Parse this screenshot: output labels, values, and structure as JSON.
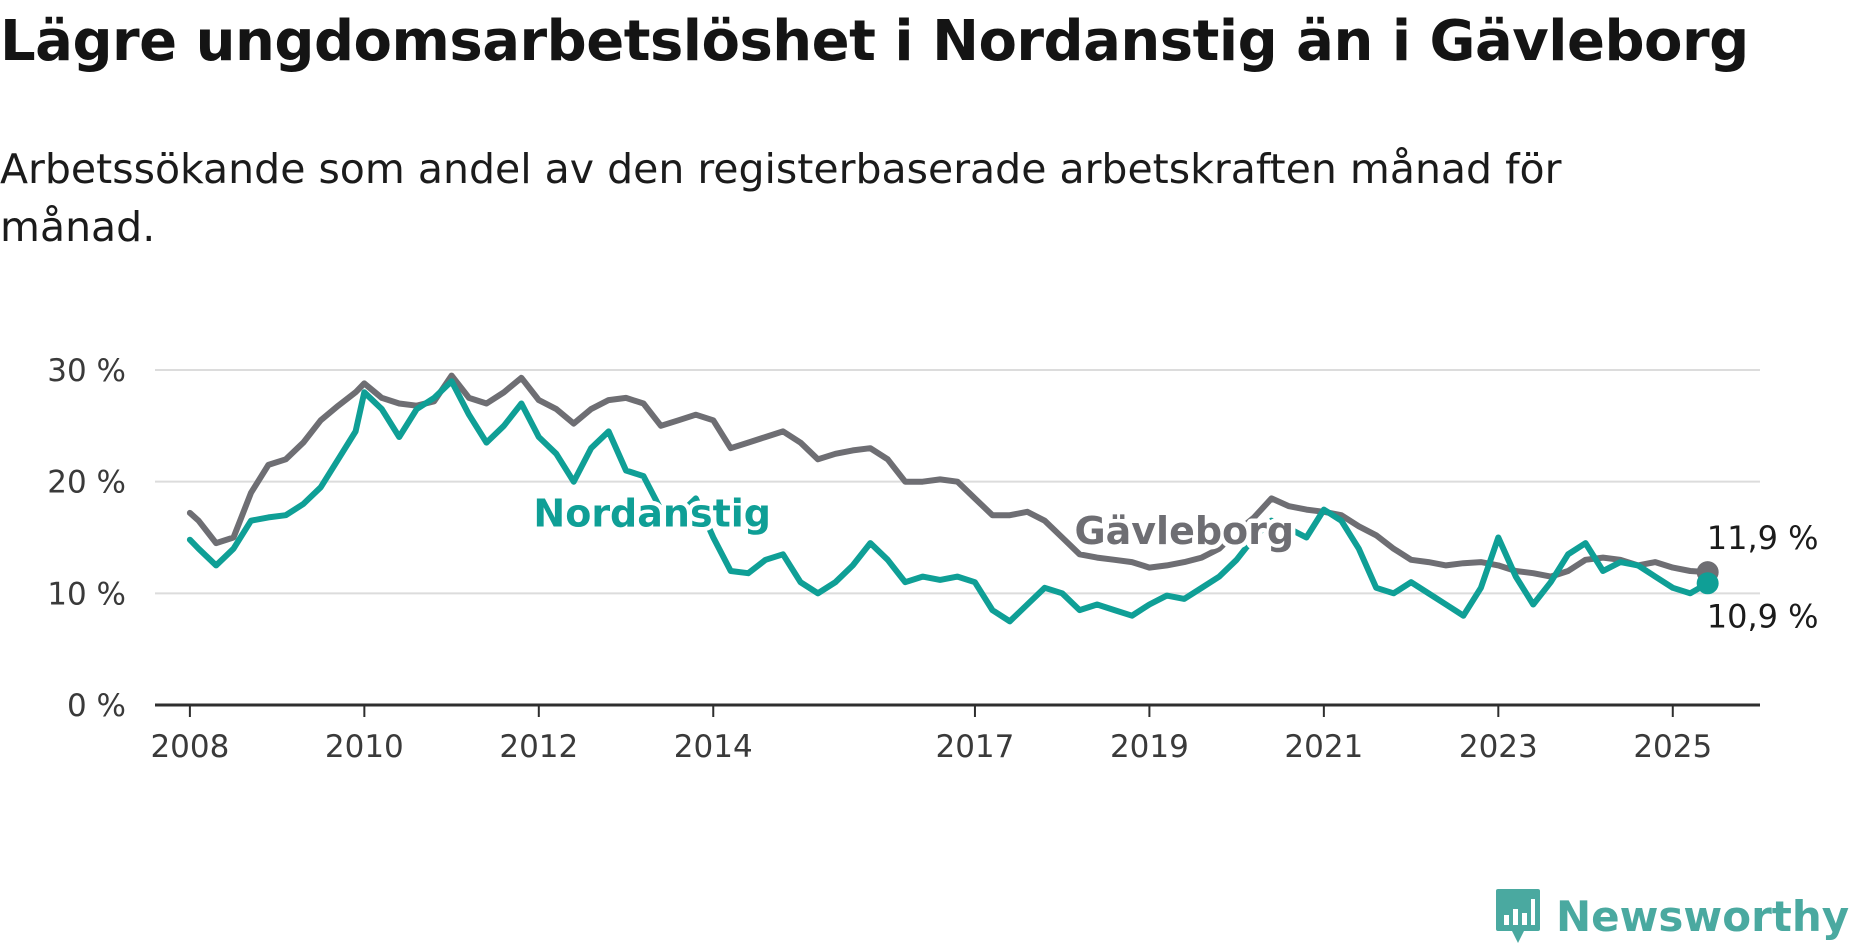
{
  "title": "Lägre ungdomsarbetslöshet i Nordanstig än i Gävleborg",
  "subtitle": "Arbetssökande som andel av den registerbaserade arbetskraften månad för månad.",
  "brand": {
    "name": "Newsworthy",
    "icon": "newsworthy-logo-icon",
    "color": "#4aa9a0"
  },
  "chart_data": {
    "type": "line",
    "ylim": [
      0,
      30
    ],
    "yticks": [
      0,
      10,
      20,
      30
    ],
    "ytick_labels": [
      "0 %",
      "10 %",
      "20 %",
      "30 %"
    ],
    "xlim": [
      2007.6,
      2026.0
    ],
    "xticks": [
      2008,
      2010,
      2012,
      2014,
      2017,
      2019,
      2021,
      2023,
      2025
    ],
    "xtick_labels": [
      "2008",
      "2010",
      "2012",
      "2014",
      "2017",
      "2019",
      "2021",
      "2023",
      "2025"
    ],
    "grid": "horizontal",
    "series": [
      {
        "name": "Gävleborg",
        "color": "#6e6e73",
        "end_label": "11,9 %",
        "end_value": 11.9,
        "x": [
          2008.0,
          2008.1,
          2008.3,
          2008.5,
          2008.7,
          2008.9,
          2009.1,
          2009.3,
          2009.5,
          2009.7,
          2009.9,
          2010.0,
          2010.2,
          2010.4,
          2010.6,
          2010.8,
          2011.0,
          2011.2,
          2011.4,
          2011.6,
          2011.8,
          2012.0,
          2012.2,
          2012.4,
          2012.6,
          2012.8,
          2013.0,
          2013.2,
          2013.4,
          2013.6,
          2013.8,
          2014.0,
          2014.2,
          2014.4,
          2014.6,
          2014.8,
          2015.0,
          2015.2,
          2015.4,
          2015.6,
          2015.8,
          2016.0,
          2016.2,
          2016.4,
          2016.6,
          2016.8,
          2017.0,
          2017.2,
          2017.4,
          2017.6,
          2017.8,
          2018.0,
          2018.2,
          2018.4,
          2018.6,
          2018.8,
          2019.0,
          2019.2,
          2019.4,
          2019.6,
          2019.8,
          2020.0,
          2020.2,
          2020.4,
          2020.6,
          2020.8,
          2021.0,
          2021.2,
          2021.4,
          2021.6,
          2021.8,
          2022.0,
          2022.2,
          2022.4,
          2022.6,
          2022.8,
          2023.0,
          2023.2,
          2023.4,
          2023.6,
          2023.8,
          2024.0,
          2024.2,
          2024.4,
          2024.6,
          2024.8,
          2025.0,
          2025.2,
          2025.4
        ],
        "values": [
          17.2,
          16.5,
          14.5,
          15.0,
          19.0,
          21.5,
          22.0,
          23.5,
          25.5,
          26.8,
          28.0,
          28.8,
          27.5,
          27.0,
          26.8,
          27.2,
          29.5,
          27.5,
          27.0,
          28.0,
          29.3,
          27.3,
          26.5,
          25.2,
          26.5,
          27.3,
          27.5,
          27.0,
          25.0,
          25.5,
          26.0,
          25.5,
          23.0,
          23.5,
          24.0,
          24.5,
          23.5,
          22.0,
          22.5,
          22.8,
          23.0,
          22.0,
          20.0,
          20.0,
          20.2,
          20.0,
          18.5,
          17.0,
          17.0,
          17.3,
          16.5,
          15.0,
          13.5,
          13.2,
          13.0,
          12.8,
          12.3,
          12.5,
          12.8,
          13.2,
          14.0,
          15.5,
          16.8,
          18.5,
          17.8,
          17.5,
          17.3,
          17.0,
          16.0,
          15.2,
          14.0,
          13.0,
          12.8,
          12.5,
          12.7,
          12.8,
          12.5,
          12.0,
          11.8,
          11.5,
          12.0,
          13.0,
          13.2,
          13.0,
          12.5,
          12.8,
          12.3,
          12.0,
          11.9
        ]
      },
      {
        "name": "Nordanstig",
        "color": "#0f9f96",
        "end_label": "10,9 %",
        "end_value": 10.9,
        "x": [
          2008.0,
          2008.1,
          2008.3,
          2008.5,
          2008.7,
          2008.9,
          2009.1,
          2009.3,
          2009.5,
          2009.7,
          2009.9,
          2010.0,
          2010.2,
          2010.4,
          2010.6,
          2010.8,
          2011.0,
          2011.2,
          2011.4,
          2011.6,
          2011.8,
          2012.0,
          2012.2,
          2012.4,
          2012.6,
          2012.8,
          2013.0,
          2013.2,
          2013.4,
          2013.6,
          2013.8,
          2014.0,
          2014.2,
          2014.4,
          2014.6,
          2014.8,
          2015.0,
          2015.2,
          2015.4,
          2015.6,
          2015.8,
          2016.0,
          2016.2,
          2016.4,
          2016.6,
          2016.8,
          2017.0,
          2017.2,
          2017.4,
          2017.6,
          2017.8,
          2018.0,
          2018.2,
          2018.4,
          2018.6,
          2018.8,
          2019.0,
          2019.2,
          2019.4,
          2019.6,
          2019.8,
          2020.0,
          2020.2,
          2020.4,
          2020.6,
          2020.8,
          2021.0,
          2021.2,
          2021.4,
          2021.6,
          2021.8,
          2022.0,
          2022.2,
          2022.4,
          2022.6,
          2022.8,
          2023.0,
          2023.2,
          2023.4,
          2023.6,
          2023.8,
          2024.0,
          2024.2,
          2024.4,
          2024.6,
          2024.8,
          2025.0,
          2025.2,
          2025.4
        ],
        "values": [
          14.8,
          14.0,
          12.5,
          14.0,
          16.5,
          16.8,
          17.0,
          18.0,
          19.5,
          22.0,
          24.5,
          28.0,
          26.5,
          24.0,
          26.5,
          27.5,
          29.0,
          26.0,
          23.5,
          25.0,
          27.0,
          24.0,
          22.5,
          20.0,
          23.0,
          24.5,
          21.0,
          20.5,
          17.5,
          17.0,
          18.5,
          15.0,
          12.0,
          11.8,
          13.0,
          13.5,
          11.0,
          10.0,
          11.0,
          12.5,
          14.5,
          13.0,
          11.0,
          11.5,
          11.2,
          11.5,
          11.0,
          8.5,
          7.5,
          9.0,
          10.5,
          10.0,
          8.5,
          9.0,
          8.5,
          8.0,
          9.0,
          9.8,
          9.5,
          10.5,
          11.5,
          13.0,
          15.0,
          16.5,
          15.8,
          15.0,
          17.5,
          16.5,
          14.0,
          10.5,
          10.0,
          11.0,
          10.0,
          9.0,
          8.0,
          10.5,
          15.0,
          11.5,
          9.0,
          11.0,
          13.5,
          14.5,
          12.0,
          12.8,
          12.5,
          11.5,
          10.5,
          10.0,
          10.9
        ]
      }
    ]
  }
}
